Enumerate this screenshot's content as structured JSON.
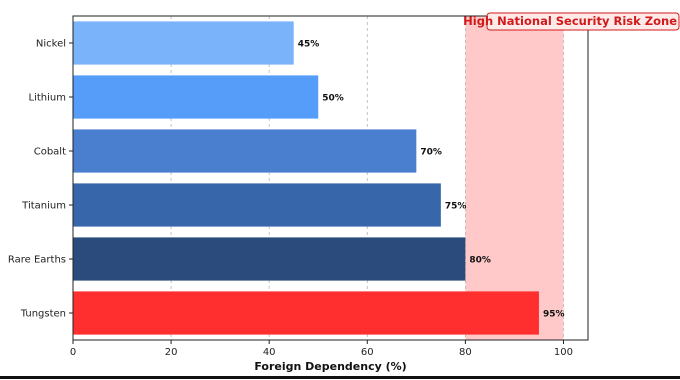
{
  "chart_data": {
    "type": "bar",
    "orientation": "horizontal",
    "categories": [
      "Nickel",
      "Lithium",
      "Cobalt",
      "Titanium",
      "Rare Earths",
      "Tungsten"
    ],
    "values": [
      45,
      50,
      70,
      75,
      80,
      95
    ],
    "value_labels": [
      "45%",
      "50%",
      "70%",
      "75%",
      "80%",
      "95%"
    ],
    "bar_colors": [
      "#7ab3fa",
      "#559df8",
      "#4a7fd0",
      "#3866ab",
      "#2a4b7c",
      "#ff2f2f"
    ],
    "xlabel": "Foreign Dependency (%)",
    "ylabel": "",
    "xlim": [
      0,
      105
    ],
    "xticks": [
      0,
      20,
      40,
      60,
      80,
      100
    ],
    "grid": "x-dashed",
    "risk_zone": {
      "label": "High National Security Risk Zone",
      "from": 80,
      "to": 100,
      "color": "#ffc9c9",
      "label_color": "#d11a1a"
    }
  }
}
